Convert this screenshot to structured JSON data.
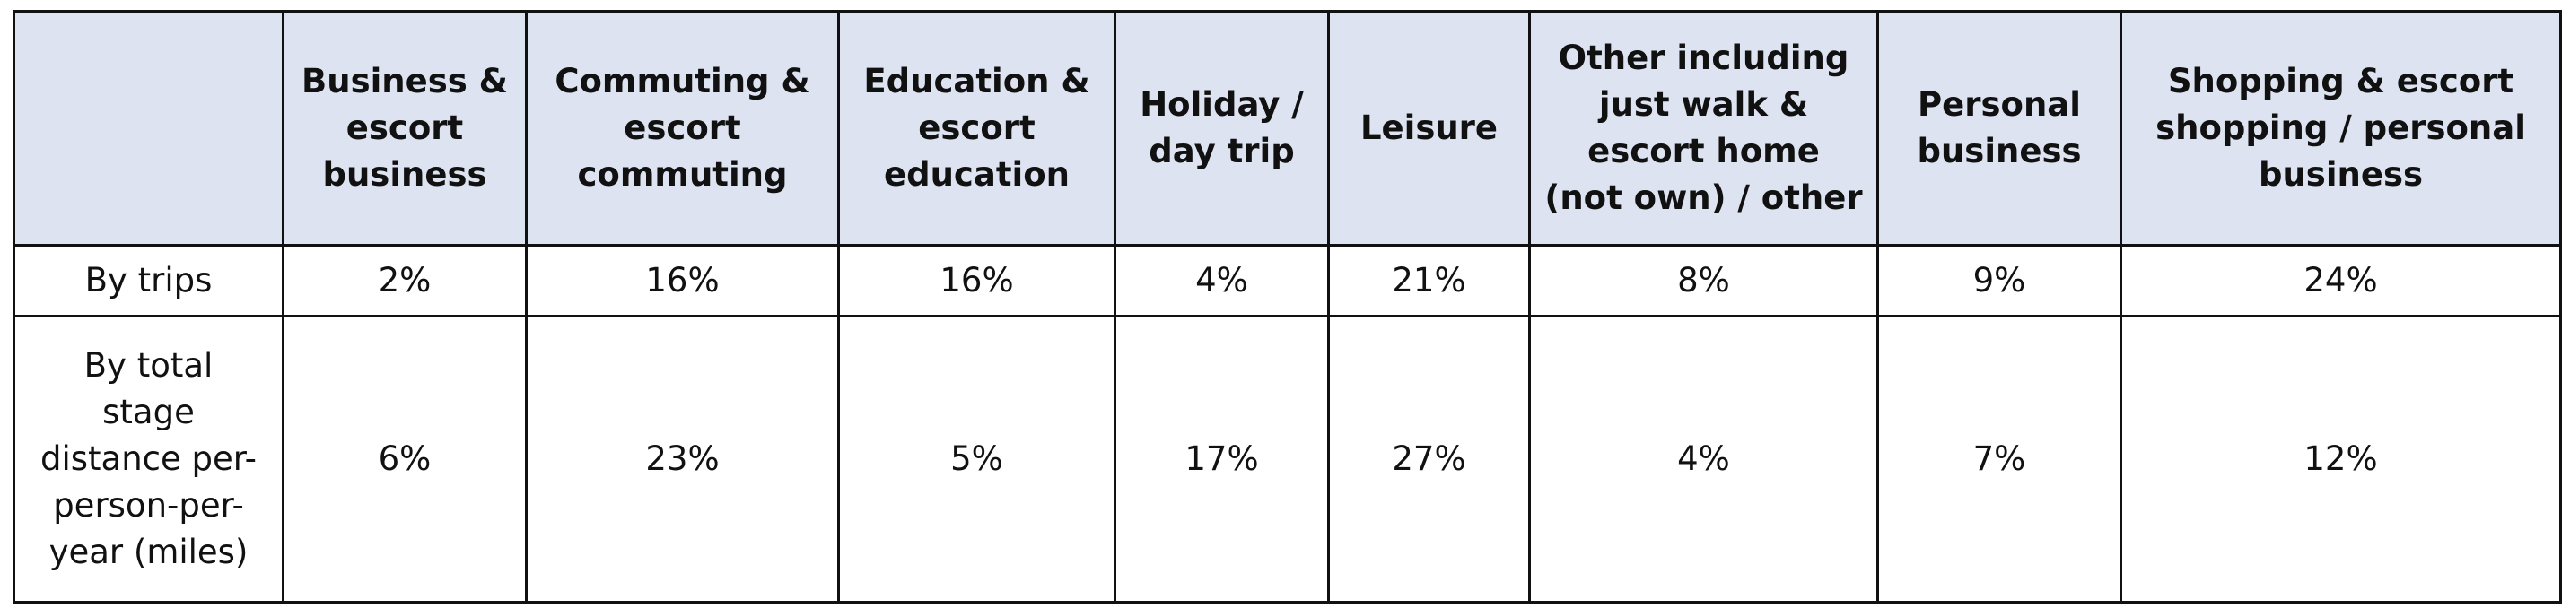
{
  "table": {
    "columns": [
      "Business & escort business",
      "Commuting & escort commuting",
      "Education & escort education",
      "Holiday / day trip",
      "Leisure",
      "Other including just walk & escort home (not own) / other",
      "Personal business",
      "Shopping & escort shopping / personal business"
    ],
    "rows": [
      {
        "label": "By trips",
        "values": [
          "2%",
          "16%",
          "16%",
          "4%",
          "21%",
          "8%",
          "9%",
          "24%"
        ]
      },
      {
        "label": "By total stage distance per-person-per-year (miles)",
        "values": [
          "6%",
          "23%",
          "5%",
          "17%",
          "27%",
          "4%",
          "7%",
          "12%"
        ]
      }
    ]
  }
}
